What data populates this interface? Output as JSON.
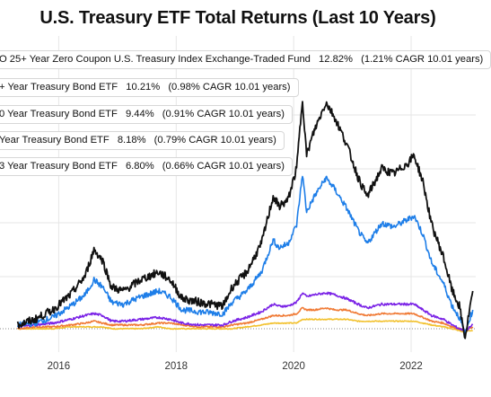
{
  "title": "U.S. Treasury ETF Total Returns (Last 10 Years)",
  "colors": {
    "grid": "#e6e6e6",
    "zero_line": "#888888"
  },
  "chart_data": {
    "type": "line",
    "title": "U.S. Treasury ETF Total Returns (Last 10 Years)",
    "xlabel": "",
    "ylabel": "",
    "x_ticks": [
      "2016",
      "2018",
      "2020",
      "2022"
    ],
    "grid": true,
    "legend_placement": "top-left",
    "series": [
      {
        "name": "O 25+ Year Zero Coupon U.S. Treasury Index Exchange-Traded Fund",
        "total_return": "12.82%",
        "cagr": "(1.21% CAGR 10.01 years)",
        "color": "#111111",
        "points": [
          [
            2015.3,
            0.02
          ],
          [
            2015.6,
            0.05
          ],
          [
            2015.9,
            0.1
          ],
          [
            2016.2,
            0.18
          ],
          [
            2016.45,
            0.28
          ],
          [
            2016.6,
            0.42
          ],
          [
            2016.75,
            0.36
          ],
          [
            2016.9,
            0.22
          ],
          [
            2017.1,
            0.2
          ],
          [
            2017.4,
            0.26
          ],
          [
            2017.7,
            0.3
          ],
          [
            2017.9,
            0.26
          ],
          [
            2018.1,
            0.16
          ],
          [
            2018.4,
            0.14
          ],
          [
            2018.8,
            0.12
          ],
          [
            2018.95,
            0.22
          ],
          [
            2019.2,
            0.3
          ],
          [
            2019.45,
            0.45
          ],
          [
            2019.65,
            0.7
          ],
          [
            2019.75,
            0.65
          ],
          [
            2019.9,
            0.68
          ],
          [
            2020.05,
            0.85
          ],
          [
            2020.15,
            1.22
          ],
          [
            2020.22,
            0.92
          ],
          [
            2020.35,
            1.05
          ],
          [
            2020.55,
            1.2
          ],
          [
            2020.7,
            1.12
          ],
          [
            2020.9,
            0.98
          ],
          [
            2021.1,
            0.8
          ],
          [
            2021.25,
            0.7
          ],
          [
            2021.5,
            0.85
          ],
          [
            2021.7,
            0.82
          ],
          [
            2021.95,
            0.88
          ],
          [
            2022.05,
            0.92
          ],
          [
            2022.2,
            0.78
          ],
          [
            2022.35,
            0.55
          ],
          [
            2022.55,
            0.38
          ],
          [
            2022.7,
            0.2
          ],
          [
            2022.82,
            0.12
          ],
          [
            2022.92,
            -0.05
          ],
          [
            2022.97,
            0.05
          ],
          [
            2023.05,
            0.2
          ]
        ]
      },
      {
        "name": "+ Year Treasury Bond ETF",
        "total_return": "10.21%",
        "cagr": "(0.98% CAGR 10.01 years)",
        "color": "#1e7ee8",
        "points": [
          [
            2015.3,
            0.02
          ],
          [
            2015.6,
            0.03
          ],
          [
            2015.9,
            0.06
          ],
          [
            2016.2,
            0.12
          ],
          [
            2016.45,
            0.18
          ],
          [
            2016.6,
            0.26
          ],
          [
            2016.75,
            0.22
          ],
          [
            2016.9,
            0.14
          ],
          [
            2017.1,
            0.13
          ],
          [
            2017.4,
            0.17
          ],
          [
            2017.7,
            0.2
          ],
          [
            2017.9,
            0.17
          ],
          [
            2018.1,
            0.1
          ],
          [
            2018.4,
            0.09
          ],
          [
            2018.8,
            0.08
          ],
          [
            2018.95,
            0.14
          ],
          [
            2019.2,
            0.2
          ],
          [
            2019.45,
            0.3
          ],
          [
            2019.65,
            0.47
          ],
          [
            2019.75,
            0.43
          ],
          [
            2019.9,
            0.45
          ],
          [
            2020.05,
            0.55
          ],
          [
            2020.15,
            0.82
          ],
          [
            2020.22,
            0.62
          ],
          [
            2020.35,
            0.7
          ],
          [
            2020.55,
            0.8
          ],
          [
            2020.7,
            0.74
          ],
          [
            2020.9,
            0.64
          ],
          [
            2021.1,
            0.52
          ],
          [
            2021.25,
            0.45
          ],
          [
            2021.5,
            0.56
          ],
          [
            2021.7,
            0.54
          ],
          [
            2021.95,
            0.58
          ],
          [
            2022.05,
            0.6
          ],
          [
            2022.2,
            0.5
          ],
          [
            2022.35,
            0.35
          ],
          [
            2022.55,
            0.24
          ],
          [
            2022.7,
            0.12
          ],
          [
            2022.82,
            0.06
          ],
          [
            2022.92,
            -0.03
          ],
          [
            2022.97,
            0.03
          ],
          [
            2023.05,
            0.1
          ]
        ]
      },
      {
        "name": "0 Year Treasury Bond ETF",
        "total_return": "9.44%",
        "cagr": "(0.91% CAGR 10.01 years)",
        "color": "#7a22e6",
        "points": [
          [
            2015.3,
            0.01
          ],
          [
            2015.6,
            0.02
          ],
          [
            2015.9,
            0.03
          ],
          [
            2016.2,
            0.05
          ],
          [
            2016.45,
            0.07
          ],
          [
            2016.6,
            0.08
          ],
          [
            2016.75,
            0.07
          ],
          [
            2016.9,
            0.04
          ],
          [
            2017.1,
            0.04
          ],
          [
            2017.4,
            0.05
          ],
          [
            2017.7,
            0.06
          ],
          [
            2017.9,
            0.05
          ],
          [
            2018.1,
            0.03
          ],
          [
            2018.4,
            0.02
          ],
          [
            2018.8,
            0.02
          ],
          [
            2018.95,
            0.04
          ],
          [
            2019.2,
            0.06
          ],
          [
            2019.45,
            0.09
          ],
          [
            2019.65,
            0.13
          ],
          [
            2019.75,
            0.12
          ],
          [
            2019.9,
            0.12
          ],
          [
            2020.05,
            0.14
          ],
          [
            2020.15,
            0.19
          ],
          [
            2020.22,
            0.17
          ],
          [
            2020.35,
            0.18
          ],
          [
            2020.55,
            0.19
          ],
          [
            2020.7,
            0.18
          ],
          [
            2020.9,
            0.16
          ],
          [
            2021.1,
            0.13
          ],
          [
            2021.25,
            0.11
          ],
          [
            2021.5,
            0.13
          ],
          [
            2021.7,
            0.13
          ],
          [
            2021.95,
            0.13
          ],
          [
            2022.05,
            0.13
          ],
          [
            2022.2,
            0.1
          ],
          [
            2022.35,
            0.07
          ],
          [
            2022.55,
            0.05
          ],
          [
            2022.7,
            0.02
          ],
          [
            2022.82,
            0.0
          ],
          [
            2022.92,
            -0.01
          ],
          [
            2022.97,
            0.0
          ],
          [
            2023.05,
            0.02
          ]
        ]
      },
      {
        "name": "Year Treasury Bond ETF",
        "total_return": "8.18%",
        "cagr": "(0.79% CAGR 10.01 years)",
        "color": "#f07a35",
        "points": [
          [
            2015.3,
            0.0
          ],
          [
            2015.6,
            0.01
          ],
          [
            2015.9,
            0.01
          ],
          [
            2016.2,
            0.02
          ],
          [
            2016.45,
            0.03
          ],
          [
            2016.6,
            0.04
          ],
          [
            2016.75,
            0.03
          ],
          [
            2016.9,
            0.02
          ],
          [
            2017.1,
            0.02
          ],
          [
            2017.4,
            0.02
          ],
          [
            2017.7,
            0.03
          ],
          [
            2017.9,
            0.03
          ],
          [
            2018.1,
            0.02
          ],
          [
            2018.4,
            0.01
          ],
          [
            2018.8,
            0.01
          ],
          [
            2018.95,
            0.02
          ],
          [
            2019.2,
            0.03
          ],
          [
            2019.45,
            0.05
          ],
          [
            2019.65,
            0.07
          ],
          [
            2019.75,
            0.07
          ],
          [
            2019.9,
            0.07
          ],
          [
            2020.05,
            0.08
          ],
          [
            2020.15,
            0.11
          ],
          [
            2020.22,
            0.1
          ],
          [
            2020.35,
            0.1
          ],
          [
            2020.55,
            0.11
          ],
          [
            2020.7,
            0.1
          ],
          [
            2020.9,
            0.1
          ],
          [
            2021.1,
            0.08
          ],
          [
            2021.25,
            0.07
          ],
          [
            2021.5,
            0.08
          ],
          [
            2021.7,
            0.08
          ],
          [
            2021.95,
            0.08
          ],
          [
            2022.05,
            0.08
          ],
          [
            2022.2,
            0.06
          ],
          [
            2022.35,
            0.04
          ],
          [
            2022.55,
            0.03
          ],
          [
            2022.7,
            0.01
          ],
          [
            2022.82,
            0.0
          ],
          [
            2022.92,
            -0.01
          ],
          [
            2022.97,
            0.0
          ],
          [
            2023.05,
            0.01
          ]
        ]
      },
      {
        "name": "3 Year Treasury Bond ETF",
        "total_return": "6.80%",
        "cagr": "(0.66% CAGR 10.01 years)",
        "color": "#f2c12e",
        "points": [
          [
            2015.3,
            0.0
          ],
          [
            2015.6,
            0.0
          ],
          [
            2015.9,
            0.0
          ],
          [
            2016.2,
            0.01
          ],
          [
            2016.45,
            0.01
          ],
          [
            2016.6,
            0.01
          ],
          [
            2016.75,
            0.01
          ],
          [
            2016.9,
            0.0
          ],
          [
            2017.1,
            0.0
          ],
          [
            2017.4,
            0.0
          ],
          [
            2017.7,
            0.01
          ],
          [
            2017.9,
            0.0
          ],
          [
            2018.1,
            0.0
          ],
          [
            2018.4,
            0.0
          ],
          [
            2018.8,
            0.0
          ],
          [
            2018.95,
            0.0
          ],
          [
            2019.2,
            0.01
          ],
          [
            2019.45,
            0.02
          ],
          [
            2019.65,
            0.03
          ],
          [
            2019.75,
            0.03
          ],
          [
            2019.9,
            0.03
          ],
          [
            2020.05,
            0.03
          ],
          [
            2020.15,
            0.05
          ],
          [
            2020.22,
            0.05
          ],
          [
            2020.35,
            0.05
          ],
          [
            2020.55,
            0.05
          ],
          [
            2020.7,
            0.05
          ],
          [
            2020.9,
            0.05
          ],
          [
            2021.1,
            0.04
          ],
          [
            2021.25,
            0.04
          ],
          [
            2021.5,
            0.04
          ],
          [
            2021.7,
            0.04
          ],
          [
            2021.95,
            0.04
          ],
          [
            2022.05,
            0.04
          ],
          [
            2022.2,
            0.03
          ],
          [
            2022.35,
            0.02
          ],
          [
            2022.55,
            0.01
          ],
          [
            2022.7,
            0.0
          ],
          [
            2022.82,
            -0.01
          ],
          [
            2022.92,
            -0.02
          ],
          [
            2022.97,
            -0.01
          ],
          [
            2023.05,
            -0.01
          ]
        ]
      }
    ]
  }
}
